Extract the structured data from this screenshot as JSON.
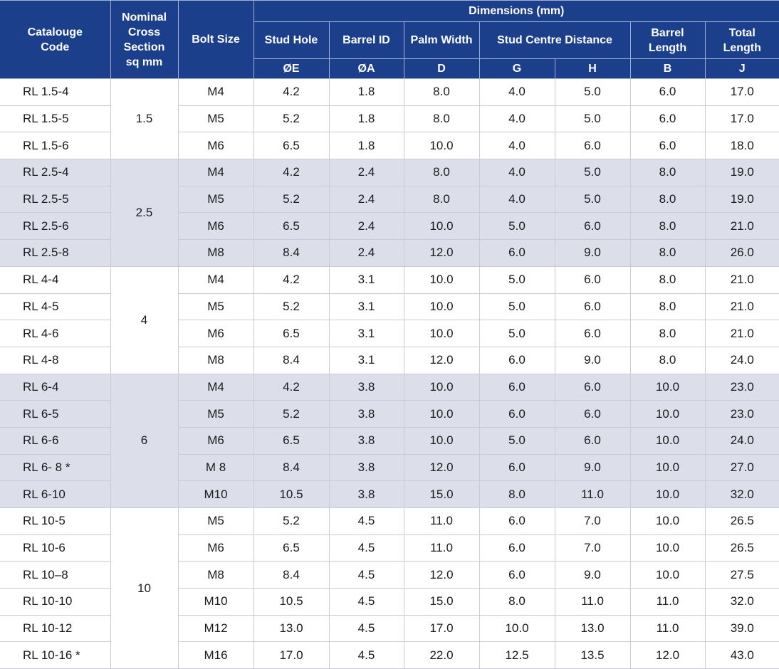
{
  "table": {
    "headers": [
      "Catalouge\nCode",
      "Nominal\nCross\nSection\nsq mm",
      "Bolt Size"
    ],
    "dimensions_title": "Dimensions (mm)",
    "column_groups": [
      {
        "label": "Stud Hole",
        "symbols": [
          "ØE"
        ]
      },
      {
        "label": "Barrel ID",
        "symbols": [
          "ØA"
        ]
      },
      {
        "label": "Palm Width",
        "symbols": [
          "D"
        ]
      },
      {
        "label": "Stud Centre Distance",
        "symbols": [
          "G",
          "H"
        ]
      },
      {
        "label": "Barrel\nLength",
        "symbols": [
          "B"
        ]
      },
      {
        "label": "Total\nLength",
        "symbols": [
          "J"
        ]
      }
    ],
    "groups": [
      {
        "section": "1.5",
        "rows": [
          [
            "RL 1.5-4",
            "M4",
            "4.2",
            "1.8",
            "8.0",
            "4.0",
            "5.0",
            "6.0",
            "17.0"
          ],
          [
            "RL 1.5-5",
            "M5",
            "5.2",
            "1.8",
            "8.0",
            "4.0",
            "5.0",
            "6.0",
            "17.0"
          ],
          [
            "RL 1.5-6",
            "M6",
            "6.5",
            "1.8",
            "10.0",
            "4.0",
            "6.0",
            "6.0",
            "18.0"
          ]
        ]
      },
      {
        "section": "2.5",
        "rows": [
          [
            "RL 2.5-4",
            "M4",
            "4.2",
            "2.4",
            "8.0",
            "4.0",
            "5.0",
            "8.0",
            "19.0"
          ],
          [
            "RL 2.5-5",
            "M5",
            "5.2",
            "2.4",
            "8.0",
            "4.0",
            "5.0",
            "8.0",
            "19.0"
          ],
          [
            "RL 2.5-6",
            "M6",
            "6.5",
            "2.4",
            "10.0",
            "5.0",
            "6.0",
            "8.0",
            "21.0"
          ],
          [
            "RL 2.5-8",
            "M8",
            "8.4",
            "2.4",
            "12.0",
            "6.0",
            "9.0",
            "8.0",
            "26.0"
          ]
        ]
      },
      {
        "section": "4",
        "rows": [
          [
            "RL 4-4",
            "M4",
            "4.2",
            "3.1",
            "10.0",
            "5.0",
            "6.0",
            "8.0",
            "21.0"
          ],
          [
            "RL 4-5",
            "M5",
            "5.2",
            "3.1",
            "10.0",
            "5.0",
            "6.0",
            "8.0",
            "21.0"
          ],
          [
            "RL 4-6",
            "M6",
            "6.5",
            "3.1",
            "10.0",
            "5.0",
            "6.0",
            "8.0",
            "21.0"
          ],
          [
            "RL 4-8",
            "M8",
            "8.4",
            "3.1",
            "12.0",
            "6.0",
            "9.0",
            "8.0",
            "24.0"
          ]
        ]
      },
      {
        "section": "6",
        "rows": [
          [
            "RL 6-4",
            "M4",
            "4.2",
            "3.8",
            "10.0",
            "6.0",
            "6.0",
            "10.0",
            "23.0"
          ],
          [
            "RL 6-5",
            "M5",
            "5.2",
            "3.8",
            "10.0",
            "6.0",
            "6.0",
            "10.0",
            "23.0"
          ],
          [
            "RL 6-6",
            "M6",
            "6.5",
            "3.8",
            "10.0",
            "5.0",
            "6.0",
            "10.0",
            "24.0"
          ],
          [
            "RL 6- 8 *",
            "M 8",
            "8.4",
            "3.8",
            "12.0",
            "6.0",
            "9.0",
            "10.0",
            "27.0"
          ],
          [
            "RL 6-10",
            "M10",
            "10.5",
            "3.8",
            "15.0",
            "8.0",
            "11.0",
            "10.0",
            "32.0"
          ]
        ]
      },
      {
        "section": "10",
        "rows": [
          [
            "RL 10-5",
            "M5",
            "5.2",
            "4.5",
            "11.0",
            "6.0",
            "7.0",
            "10.0",
            "26.5"
          ],
          [
            "RL 10-6",
            "M6",
            "6.5",
            "4.5",
            "11.0",
            "6.0",
            "7.0",
            "10.0",
            "26.5"
          ],
          [
            "RL 10–8",
            "M8",
            "8.4",
            "4.5",
            "12.0",
            "6.0",
            "9.0",
            "10.0",
            "27.5"
          ],
          [
            "RL 10-10",
            "M10",
            "10.5",
            "4.5",
            "15.0",
            "8.0",
            "11.0",
            "11.0",
            "32.0"
          ],
          [
            "RL 10-12",
            "M12",
            "13.0",
            "4.5",
            "17.0",
            "10.0",
            "13.0",
            "11.0",
            "39.0"
          ],
          [
            "RL 10-16 *",
            "M16",
            "17.0",
            "4.5",
            "22.0",
            "12.5",
            "13.5",
            "12.0",
            "43.0"
          ]
        ]
      }
    ]
  }
}
